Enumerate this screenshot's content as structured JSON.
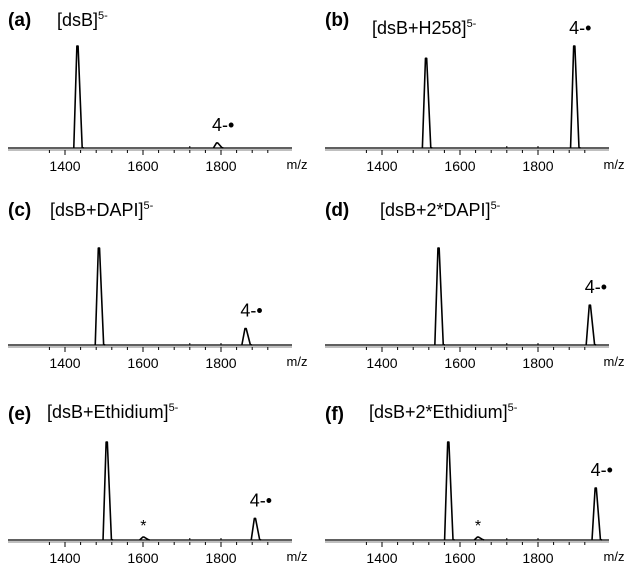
{
  "chart_data": [
    {
      "type": "line",
      "panel_label": "(a)",
      "title": "[dsB]",
      "title_sup": "5-",
      "xlabel": "m/z",
      "xticks": [
        "1400",
        "1600",
        "1800"
      ],
      "xlim": [
        1350,
        1950
      ],
      "ylim": [
        0,
        1
      ],
      "peaks": [
        {
          "x": 1432,
          "y": 1.0,
          "label": ""
        },
        {
          "x": 1790,
          "y": 0.05,
          "label": "4-•"
        }
      ]
    },
    {
      "type": "line",
      "panel_label": "(b)",
      "title": "[dsB+H258]",
      "title_sup": "5-",
      "xlabel": "m/z",
      "xticks": [
        "1400",
        "1600",
        "1800"
      ],
      "xlim": [
        1350,
        1950
      ],
      "ylim": [
        0,
        1
      ],
      "peaks": [
        {
          "x": 1513,
          "y": 0.88,
          "label": ""
        },
        {
          "x": 1893,
          "y": 1.0,
          "label": "4-•"
        }
      ]
    },
    {
      "type": "line",
      "panel_label": "(c)",
      "title": "[dsB+DAPI]",
      "title_sup": "5-",
      "xlabel": "m/z",
      "xticks": [
        "1400",
        "1600",
        "1800"
      ],
      "xlim": [
        1350,
        1950
      ],
      "ylim": [
        0,
        1
      ],
      "peaks": [
        {
          "x": 1487,
          "y": 1.0,
          "label": ""
        },
        {
          "x": 1863,
          "y": 0.17,
          "label": "4-•"
        }
      ]
    },
    {
      "type": "line",
      "panel_label": "(d)",
      "title": "[dsB+2*DAPI]",
      "title_sup": "5-",
      "xlabel": "m/z",
      "xticks": [
        "1400",
        "1600",
        "1800"
      ],
      "xlim": [
        1350,
        1950
      ],
      "ylim": [
        0,
        1
      ],
      "peaks": [
        {
          "x": 1545,
          "y": 1.0,
          "label": ""
        },
        {
          "x": 1933,
          "y": 0.41,
          "label": "4-•"
        }
      ]
    },
    {
      "type": "line",
      "panel_label": "(e)",
      "title": "[dsB+Ethidium]",
      "title_sup": "5-",
      "xlabel": "m/z",
      "xticks": [
        "1400",
        "1600",
        "1800"
      ],
      "xlim": [
        1350,
        1950
      ],
      "ylim": [
        0,
        1
      ],
      "peaks": [
        {
          "x": 1507,
          "y": 1.0,
          "label": ""
        },
        {
          "x": 1601,
          "y": 0.03,
          "label": "*"
        },
        {
          "x": 1887,
          "y": 0.22,
          "label": "4-•"
        }
      ]
    },
    {
      "type": "line",
      "panel_label": "(f)",
      "title": "[dsB+2*Ethidium]",
      "title_sup": "5-",
      "xlabel": "m/z",
      "xticks": [
        "1400",
        "1600",
        "1800"
      ],
      "xlim": [
        1350,
        1950
      ],
      "ylim": [
        0,
        1
      ],
      "peaks": [
        {
          "x": 1570,
          "y": 1.0,
          "label": ""
        },
        {
          "x": 1646,
          "y": 0.03,
          "label": "*"
        },
        {
          "x": 1948,
          "y": 0.53,
          "label": "4-•"
        }
      ]
    }
  ]
}
